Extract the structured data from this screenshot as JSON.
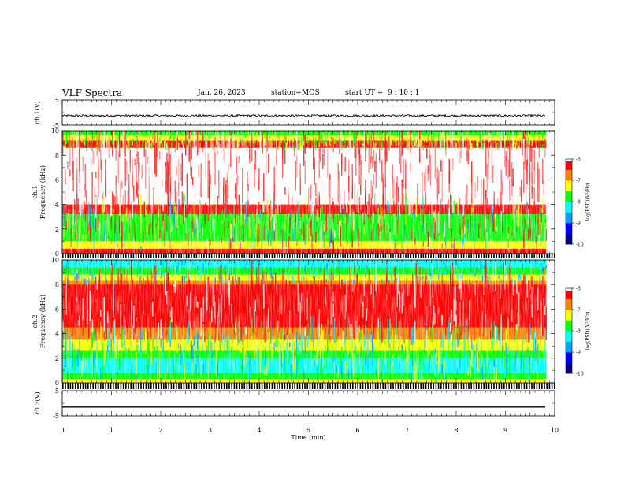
{
  "header": {
    "title": "VLF Spectra",
    "date": "Jan. 26, 2023",
    "station": "station=MOS",
    "start": "start UT =  9 : 10 : 1"
  },
  "chart_data": [
    {
      "type": "line",
      "panel": "ch1-waveform",
      "ylabel": "ch.1(V)",
      "ylim": [
        -5,
        5
      ],
      "yticks": [
        "5",
        "-5"
      ],
      "xlim": [
        0,
        10
      ],
      "series": [
        {
          "values_description_mean": -1.2
        }
      ]
    },
    {
      "type": "heatmap",
      "panel": "ch1-spectrogram",
      "ylabel_line1": "ch.1",
      "ylabel_line2": "Frequency (kHz)",
      "ylim": [
        0,
        10
      ],
      "yticks": [
        "0",
        "2",
        "4",
        "6",
        "8",
        "10"
      ],
      "xlim": [
        0,
        10
      ],
      "colorbar": {
        "label": "log(PSD)(V²/Hz)",
        "range": [
          -10,
          -6
        ],
        "ticks": [
          "-6",
          "-7",
          "-8",
          "-9",
          "-10"
        ]
      }
    },
    {
      "type": "heatmap",
      "panel": "ch2-spectrogram",
      "ylabel_line1": "ch.2",
      "ylabel_line2": "Frequency (kHz)",
      "ylim": [
        0,
        10
      ],
      "yticks": [
        "0",
        "2",
        "4",
        "6",
        "8",
        "10"
      ],
      "xlim": [
        0,
        10
      ],
      "colorbar": {
        "label": "log(PSD)(V²/Hz)",
        "range": [
          -10,
          -6
        ],
        "ticks": [
          "-6",
          "-7",
          "-8",
          "-9",
          "-10"
        ]
      }
    },
    {
      "type": "line",
      "panel": "ch3-waveform",
      "ylabel": "ch.3(V)",
      "ylim": [
        -5,
        5
      ],
      "yticks": [
        "5",
        "-5"
      ],
      "xlim": [
        0,
        10
      ],
      "series": [
        {
          "values_description_mean": -1.5
        }
      ]
    }
  ],
  "xaxis": {
    "label": "Time (min)",
    "ticks": [
      "0",
      "1",
      "2",
      "3",
      "4",
      "5",
      "6",
      "7",
      "8",
      "9",
      "10"
    ],
    "data_end": 9.83
  },
  "colors": {
    "colormap": [
      "#000080",
      "#0000ff",
      "#00a0ff",
      "#00ffff",
      "#00ff00",
      "#ffff00",
      "#ff8000",
      "#ff0000",
      "#ffffff"
    ]
  }
}
